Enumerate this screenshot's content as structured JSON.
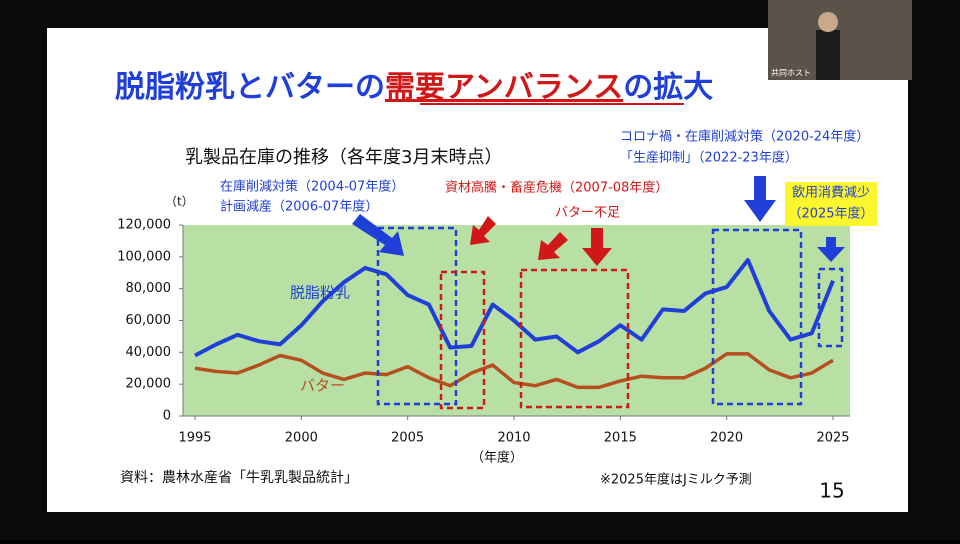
{
  "meeting": {
    "host_label": "共同ホスト"
  },
  "slide": {
    "title_parts": [
      "脱脂粉乳とバターの",
      "需要アンバランス",
      "の拡大"
    ],
    "source": "資料：農林水産省「牛乳乳製品統計」",
    "note": "※2025年度はJミルク予測",
    "page": "15"
  },
  "chart_data": {
    "type": "line",
    "title": "乳製品在庫の推移（各年度3月末時点）",
    "y_label": "（t）",
    "x_label": "（年度）",
    "x": [
      1995,
      1996,
      1997,
      1998,
      1999,
      2000,
      2001,
      2002,
      2003,
      2004,
      2005,
      2006,
      2007,
      2008,
      2009,
      2010,
      2011,
      2012,
      2013,
      2014,
      2015,
      2016,
      2017,
      2018,
      2019,
      2020,
      2021,
      2022,
      2023,
      2024,
      2025
    ],
    "series": [
      {
        "name": "脱脂粉乳",
        "color": "#1f3fd8",
        "values": [
          38000,
          45000,
          51000,
          47000,
          45000,
          57000,
          72000,
          84000,
          93000,
          89000,
          76000,
          70000,
          43000,
          44000,
          70000,
          60000,
          48000,
          50000,
          40000,
          47000,
          57000,
          48000,
          67000,
          66000,
          77000,
          81000,
          98000,
          66000,
          48000,
          52000,
          85000
        ]
      },
      {
        "name": "バター",
        "color": "#b5501e",
        "values": [
          30000,
          28000,
          27000,
          32000,
          38000,
          35000,
          27000,
          23000,
          27000,
          26000,
          31000,
          24000,
          19000,
          27000,
          32000,
          21000,
          19000,
          23000,
          18000,
          18000,
          22000,
          25000,
          24000,
          24000,
          30000,
          39000,
          39000,
          29000,
          24000,
          27000,
          35000
        ]
      }
    ],
    "xlim": [
      1995,
      2025
    ],
    "xticks": [
      1995,
      2000,
      2005,
      2010,
      2015,
      2020,
      2025
    ],
    "ylim": [
      0,
      120000
    ],
    "yticks": [
      0,
      {
        "value": 20000,
        "label": "20,000"
      },
      {
        "value": 40000,
        "label": "40,000"
      },
      {
        "value": 60000,
        "label": "60,000"
      },
      {
        "value": 80000,
        "label": "80,000"
      },
      {
        "value": 100000,
        "label": "100,000"
      },
      {
        "value": 120000,
        "label": "120,000"
      }
    ],
    "plot_background": "#b8e0a4",
    "annotations": [
      "在庫削減対策（2004-07年度）",
      "計画減産（2006-07年度）",
      "資材高騰・畜産危機（2007-08年度）",
      "バター不足",
      "コロナ禍・在庫削減対策（2020-24年度）",
      "「生産抑制」（2022-23年度）",
      "飲用消費減少",
      "（2025年度）"
    ]
  }
}
